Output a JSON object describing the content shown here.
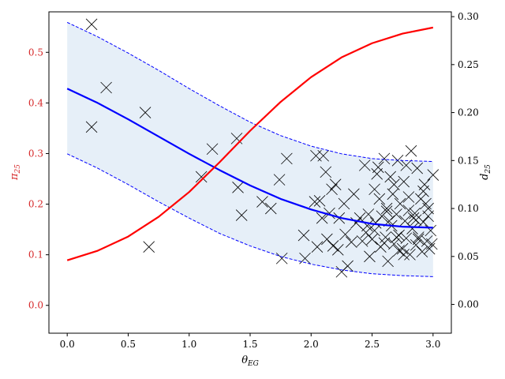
{
  "chart_data": {
    "type": "line",
    "title": "",
    "xlabel": "θEG",
    "xlabel_main": "θ",
    "xlabel_sub": "EG",
    "ylabel_left": "π25",
    "ylabel_left_main": "π",
    "ylabel_left_sub": "25",
    "ylabel_right": "d25",
    "ylabel_right_main": "d",
    "ylabel_right_sub": "25",
    "xlim": [
      -0.15,
      3.15
    ],
    "ylim_left": [
      -0.055,
      0.58
    ],
    "ylim_right": [
      -0.03,
      0.305
    ],
    "x_ticks": [
      0.0,
      0.5,
      1.0,
      1.5,
      2.0,
      2.5,
      3.0
    ],
    "x_tick_labels": [
      "0.0",
      "0.5",
      "1.0",
      "1.5",
      "2.0",
      "2.5",
      "3.0"
    ],
    "y_left_ticks": [
      0.0,
      0.1,
      0.2,
      0.3,
      0.4,
      0.5
    ],
    "y_left_tick_labels": [
      "0.0",
      "0.1",
      "0.2",
      "0.3",
      "0.4",
      "0.5"
    ],
    "y_right_ticks": [
      0.0,
      0.05,
      0.1,
      0.15,
      0.2,
      0.25,
      0.3
    ],
    "y_right_tick_labels": [
      "0.00",
      "0.05",
      "0.10",
      "0.15",
      "0.20",
      "0.25",
      "0.30"
    ],
    "grid": false,
    "legend": "none",
    "colors": {
      "pi_curve": "#ff0000",
      "d_curve": "#0000ff",
      "band_fill": "#e6eff8",
      "markers": "#000000",
      "left_axis_text": "#d62728"
    },
    "series": [
      {
        "axis": "left",
        "style": "solid",
        "color": "#ff0000",
        "x": [
          0.0,
          0.25,
          0.5,
          0.75,
          1.0,
          1.25,
          1.5,
          1.75,
          2.0,
          2.25,
          2.5,
          2.75,
          3.0
        ],
        "y": [
          0.089,
          0.108,
          0.136,
          0.175,
          0.224,
          0.283,
          0.345,
          0.402,
          0.451,
          0.49,
          0.518,
          0.537,
          0.549
        ]
      },
      {
        "axis": "right",
        "style": "solid",
        "color": "#0000ff",
        "x": [
          0.0,
          0.25,
          0.5,
          0.75,
          1.0,
          1.25,
          1.5,
          1.75,
          2.0,
          2.25,
          2.5,
          2.75,
          3.0
        ],
        "y": [
          0.225,
          0.21,
          0.193,
          0.175,
          0.157,
          0.14,
          0.124,
          0.11,
          0.099,
          0.09,
          0.084,
          0.081,
          0.08
        ]
      },
      {
        "axis": "right",
        "style": "dashed",
        "color": "#0000ff",
        "x": [
          0.0,
          0.25,
          0.5,
          0.75,
          1.0,
          1.25,
          1.5,
          1.75,
          2.0,
          2.25,
          2.5,
          2.75,
          3.0
        ],
        "y": [
          0.294,
          0.279,
          0.262,
          0.244,
          0.225,
          0.207,
          0.19,
          0.176,
          0.165,
          0.157,
          0.152,
          0.15,
          0.149
        ]
      },
      {
        "axis": "right",
        "style": "dashed",
        "color": "#0000ff",
        "x": [
          0.0,
          0.25,
          0.5,
          0.75,
          1.0,
          1.25,
          1.5,
          1.75,
          2.0,
          2.25,
          2.5,
          2.75,
          3.0
        ],
        "y": [
          0.157,
          0.142,
          0.125,
          0.107,
          0.09,
          0.074,
          0.061,
          0.05,
          0.042,
          0.036,
          0.032,
          0.03,
          0.029
        ]
      },
      {
        "type": "scatter",
        "axis": "right",
        "marker": "x",
        "color": "#000000",
        "x": [
          0.2,
          0.2,
          0.32,
          0.64,
          0.67,
          1.1,
          1.19,
          1.39,
          1.4,
          1.43,
          1.6,
          1.67,
          1.74,
          1.76,
          1.8,
          1.94,
          1.95,
          2.03,
          2.04,
          2.05,
          2.07,
          2.09,
          2.1,
          2.12,
          2.13,
          2.15,
          2.17,
          2.18,
          2.2,
          2.22,
          2.23,
          2.25,
          2.27,
          2.28,
          2.3,
          2.33,
          2.35,
          2.37,
          2.4,
          2.42,
          2.44,
          2.45,
          2.47,
          2.48,
          2.5,
          2.52,
          2.53,
          2.55,
          2.57,
          2.58,
          2.6,
          2.61,
          2.62,
          2.63,
          2.65,
          2.66,
          2.67,
          2.68,
          2.7,
          2.71,
          2.72,
          2.73,
          2.75,
          2.76,
          2.77,
          2.78,
          2.8,
          2.81,
          2.82,
          2.83,
          2.85,
          2.86,
          2.87,
          2.88,
          2.9,
          2.91,
          2.92,
          2.93,
          2.95,
          2.96,
          2.97,
          2.98,
          3.0,
          2.56,
          2.64,
          2.72,
          2.8,
          2.88,
          2.94,
          2.52,
          2.6,
          2.68,
          2.76,
          2.84,
          2.92,
          2.99,
          2.46,
          2.54,
          2.62,
          2.7,
          2.78,
          2.86,
          2.96
        ],
        "y": [
          0.292,
          0.185,
          0.226,
          0.2,
          0.06,
          0.133,
          0.162,
          0.173,
          0.122,
          0.093,
          0.107,
          0.1,
          0.13,
          0.048,
          0.152,
          0.072,
          0.048,
          0.107,
          0.155,
          0.06,
          0.108,
          0.09,
          0.155,
          0.138,
          0.068,
          0.095,
          0.12,
          0.061,
          0.125,
          0.057,
          0.09,
          0.034,
          0.105,
          0.073,
          0.04,
          0.065,
          0.115,
          0.085,
          0.09,
          0.066,
          0.145,
          0.075,
          0.094,
          0.05,
          0.068,
          0.12,
          0.085,
          0.143,
          0.06,
          0.092,
          0.152,
          0.07,
          0.1,
          0.045,
          0.133,
          0.082,
          0.115,
          0.063,
          0.094,
          0.15,
          0.072,
          0.105,
          0.058,
          0.128,
          0.087,
          0.069,
          0.112,
          0.052,
          0.16,
          0.079,
          0.095,
          0.062,
          0.142,
          0.07,
          0.11,
          0.055,
          0.086,
          0.125,
          0.066,
          0.1,
          0.058,
          0.077,
          0.135,
          0.11,
          0.087,
          0.056,
          0.098,
          0.068,
          0.105,
          0.077,
          0.064,
          0.125,
          0.052,
          0.09,
          0.118,
          0.063,
          0.082,
          0.136,
          0.097,
          0.07,
          0.145,
          0.088,
          0.092
        ]
      }
    ]
  }
}
